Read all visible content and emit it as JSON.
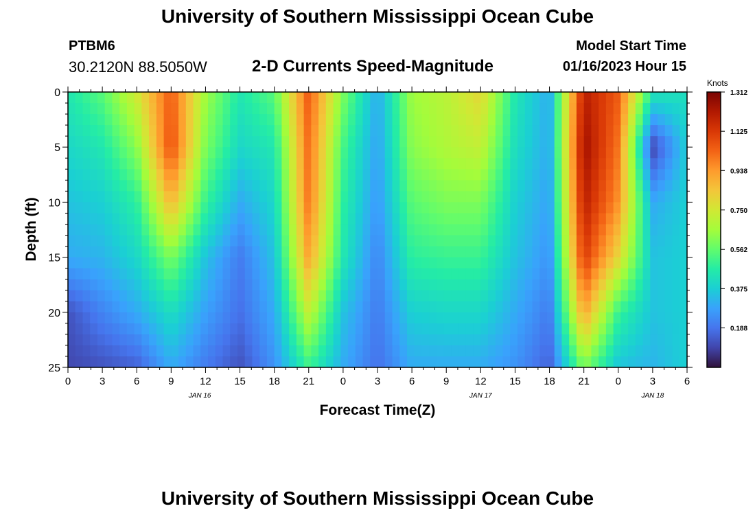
{
  "page": {
    "title": "University of Southern Mississippi Ocean Cube",
    "station": "PTBM6",
    "coordinates": "30.2120N  88.5050W",
    "subtitle": "2-D Currents Speed-Magnitude",
    "model_start_label": "Model Start Time",
    "model_start_value": "01/16/2023 Hour 15",
    "footer_title": "University of Southern Mississippi Ocean Cube"
  },
  "chart_data": {
    "type": "heatmap",
    "title": "2-D Currents Speed-Magnitude",
    "xlabel": "Forecast Time(Z)",
    "ylabel": "Depth (ft)",
    "xlim": [
      0,
      54
    ],
    "ylim": [
      0,
      25
    ],
    "x_ticks": [
      {
        "hours": 0,
        "label": "0"
      },
      {
        "hours": 3,
        "label": "3"
      },
      {
        "hours": 6,
        "label": "6"
      },
      {
        "hours": 9,
        "label": "9"
      },
      {
        "hours": 12,
        "label": "12"
      },
      {
        "hours": 15,
        "label": "15"
      },
      {
        "hours": 18,
        "label": "18"
      },
      {
        "hours": 21,
        "label": "21"
      },
      {
        "hours": 24,
        "label": "0"
      },
      {
        "hours": 27,
        "label": "3"
      },
      {
        "hours": 30,
        "label": "6"
      },
      {
        "hours": 33,
        "label": "9"
      },
      {
        "hours": 36,
        "label": "12"
      },
      {
        "hours": 39,
        "label": "15"
      },
      {
        "hours": 42,
        "label": "18"
      },
      {
        "hours": 45,
        "label": "21"
      },
      {
        "hours": 48,
        "label": "0"
      },
      {
        "hours": 51,
        "label": "3"
      },
      {
        "hours": 54,
        "label": "6"
      }
    ],
    "date_labels": [
      {
        "hours": 11.5,
        "label": "JAN 16"
      },
      {
        "hours": 36,
        "label": "JAN 17"
      },
      {
        "hours": 51,
        "label": "JAN 18"
      }
    ],
    "y_ticks": [
      0,
      5,
      10,
      15,
      20,
      25
    ],
    "colorbar": {
      "title": "Knots",
      "min": 0,
      "max": 1.312,
      "ticks": [
        "1.312",
        "1.125",
        "0.938",
        "0.750",
        "0.562",
        "0.375",
        "0.188"
      ],
      "colors": [
        "#30123b",
        "#4145ab",
        "#4675ed",
        "#39a2fc",
        "#1bcfd4",
        "#24eca6",
        "#61fc6c",
        "#a4fc3b",
        "#d1e834",
        "#f3c63a",
        "#fe9b2d",
        "#f36315",
        "#d93806",
        "#b11901",
        "#7a0403"
      ]
    },
    "grid": false,
    "sampled_values": {
      "time_hours": [
        0,
        3,
        6,
        9,
        12,
        15,
        18,
        21,
        24,
        27,
        30,
        33,
        36,
        39,
        42,
        45,
        48,
        51,
        54
      ],
      "depth_ft": [
        0,
        5,
        10,
        15,
        20,
        25
      ],
      "speed_knots": [
        [
          0.45,
          0.55,
          0.75,
          1.05,
          0.65,
          0.45,
          0.55,
          1.05,
          0.6,
          0.3,
          0.65,
          0.7,
          0.8,
          0.45,
          0.3,
          1.2,
          1.05,
          0.45,
          0.42
        ],
        [
          0.4,
          0.45,
          0.62,
          1.08,
          0.6,
          0.4,
          0.45,
          1.02,
          0.52,
          0.28,
          0.62,
          0.68,
          0.72,
          0.42,
          0.3,
          1.25,
          1.0,
          0.1,
          0.38
        ],
        [
          0.35,
          0.38,
          0.48,
          0.88,
          0.5,
          0.3,
          0.4,
          1.0,
          0.48,
          0.26,
          0.55,
          0.6,
          0.6,
          0.38,
          0.28,
          1.2,
          0.95,
          0.3,
          0.38
        ],
        [
          0.3,
          0.32,
          0.4,
          0.6,
          0.35,
          0.2,
          0.35,
          0.92,
          0.45,
          0.22,
          0.48,
          0.5,
          0.5,
          0.35,
          0.25,
          1.12,
          0.8,
          0.35,
          0.38
        ],
        [
          0.12,
          0.22,
          0.3,
          0.42,
          0.28,
          0.18,
          0.3,
          0.72,
          0.35,
          0.2,
          0.38,
          0.4,
          0.4,
          0.3,
          0.2,
          0.92,
          0.5,
          0.35,
          0.38
        ],
        [
          0.1,
          0.12,
          0.15,
          0.3,
          0.2,
          0.12,
          0.25,
          0.5,
          0.3,
          0.18,
          0.3,
          0.3,
          0.3,
          0.25,
          0.15,
          0.6,
          0.35,
          0.32,
          0.38
        ]
      ]
    }
  }
}
